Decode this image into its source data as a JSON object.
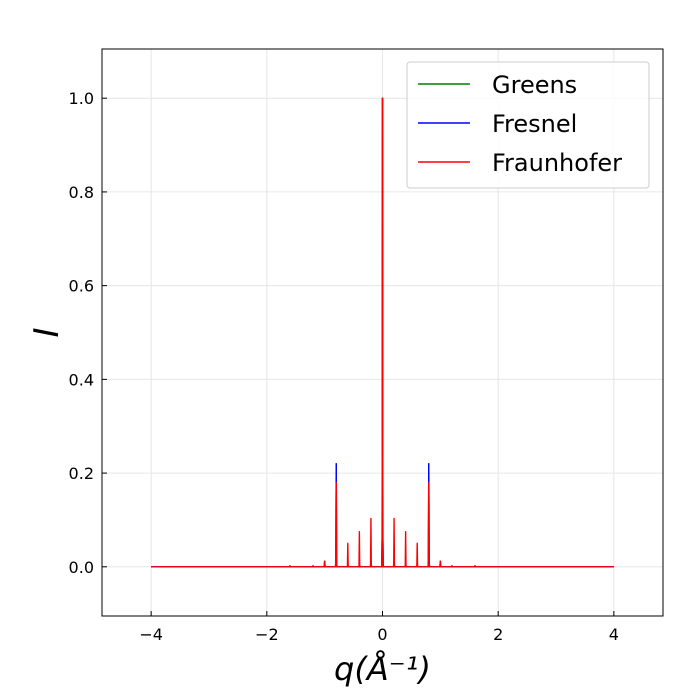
{
  "chart_data": {
    "type": "line",
    "title": "",
    "xlabel": "q(Å⁻¹)",
    "ylabel": "I",
    "xlim": [
      -4.85,
      4.85
    ],
    "ylim": [
      -0.105,
      1.105
    ],
    "xticks": [
      -4,
      -2,
      0,
      2,
      4
    ],
    "yticks": [
      0.0,
      0.2,
      0.4,
      0.6,
      0.8,
      1.0
    ],
    "xtick_labels": [
      "−4",
      "−2",
      "0",
      "2",
      "4"
    ],
    "ytick_labels": [
      "0.0",
      "0.2",
      "0.4",
      "0.6",
      "0.8",
      "1.0"
    ],
    "grid": true,
    "legend_position": "top-right",
    "x_range": [
      -4,
      4
    ],
    "peak_positions": [
      -1.6,
      -1.4,
      -1.2,
      -1.0,
      -0.8,
      -0.6,
      -0.4,
      -0.2,
      0.0,
      0.2,
      0.4,
      0.6,
      0.8,
      1.0,
      1.2,
      1.4,
      1.6
    ],
    "series": [
      {
        "name": "Greens",
        "color": "#008000",
        "peak_values": [
          0.002,
          0.0,
          0.002,
          0.012,
          0.22,
          0.0,
          0.0,
          0.0,
          1.0,
          0.0,
          0.0,
          0.0,
          0.22,
          0.012,
          0.002,
          0.0,
          0.002
        ]
      },
      {
        "name": "Fresnel",
        "color": "#0000ff",
        "peak_values": [
          0.002,
          0.0,
          0.002,
          0.012,
          0.22,
          0.0,
          0.0,
          0.0,
          1.0,
          0.0,
          0.0,
          0.0,
          0.22,
          0.012,
          0.002,
          0.0,
          0.002
        ]
      },
      {
        "name": "Fraunhofer",
        "color": "#ff0000",
        "peak_values": [
          0.001,
          0.0,
          0.002,
          0.012,
          0.18,
          0.05,
          0.075,
          0.103,
          1.0,
          0.103,
          0.075,
          0.05,
          0.18,
          0.012,
          0.002,
          0.0,
          0.001
        ]
      }
    ]
  }
}
